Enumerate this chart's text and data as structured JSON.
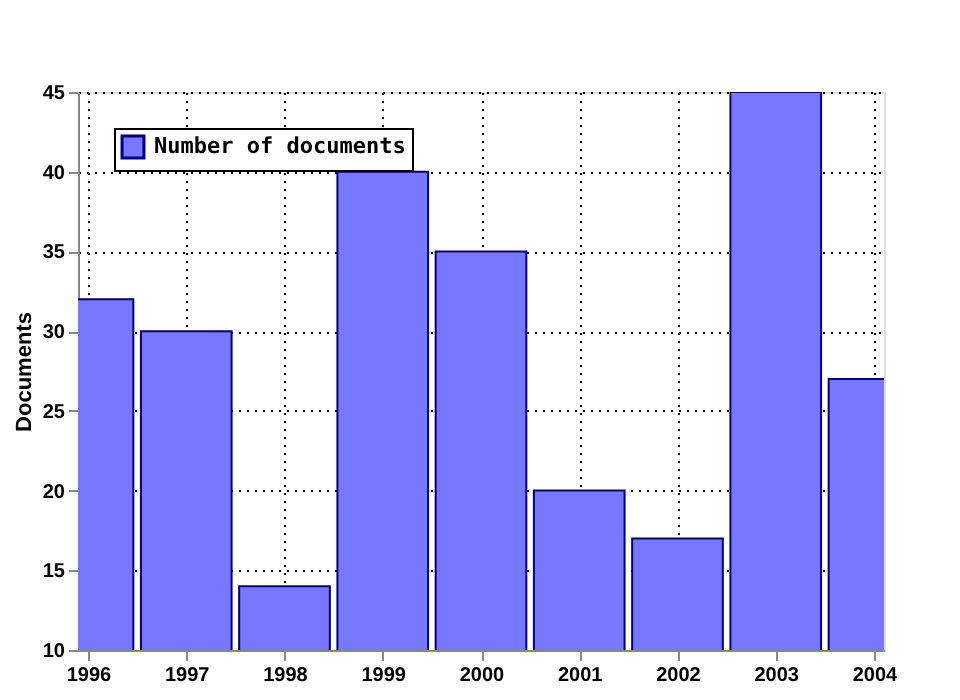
{
  "chart_data": {
    "type": "bar",
    "ylabel": "Documents",
    "x": [
      1996,
      1997,
      1998,
      1999,
      2000,
      2001,
      2002,
      2003,
      2004
    ],
    "series": [
      {
        "name": "Number of documents",
        "color": "#7777ff",
        "values": [
          32,
          30,
          14,
          40,
          35,
          20,
          17,
          45,
          27
        ]
      }
    ],
    "xlim": [
      1996,
      2004
    ],
    "xticks": [
      1996,
      1997,
      1998,
      1999,
      2000,
      2001,
      2002,
      2003,
      2004
    ],
    "ylim": [
      10,
      45
    ],
    "yticks": [
      10,
      15,
      20,
      25,
      30,
      35,
      40,
      45
    ],
    "grid": true,
    "legend": "top left"
  }
}
